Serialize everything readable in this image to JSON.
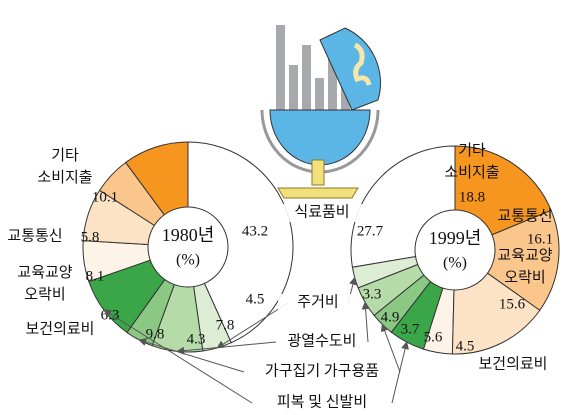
{
  "chart_data": [
    {
      "type": "pie",
      "title": "1980년",
      "unit_label": "(%)",
      "direction": "clockwise",
      "categories": [
        "식료품비",
        "주거비",
        "광열수도비",
        "가구집기 가구용품",
        "피복 및 신발비",
        "보건의료비",
        "교육교양\n오락비",
        "교통통신",
        "기타\n소비지출"
      ],
      "values": [
        43.2,
        4.5,
        7.8,
        4.3,
        9.8,
        6.3,
        8.1,
        5.8,
        10.1
      ],
      "colors": [
        "#ffffff",
        "#dcedd3",
        "#b5dba8",
        "#8ac884",
        "#3aa648",
        "#fef3e7",
        "#fde3c6",
        "#fbc68c",
        "#f7961f"
      ]
    },
    {
      "type": "pie",
      "title": "1999년",
      "unit_label": "(%)",
      "direction": "counterclockwise",
      "categories": [
        "식료품비",
        "주거비",
        "광열수도비",
        "가구집기 가구용품",
        "피복 및 신발비",
        "보건의료비",
        "교육교양\n오락비",
        "교통통신",
        "기타\n소비지출"
      ],
      "values": [
        27.7,
        3.3,
        4.9,
        3.7,
        5.6,
        4.5,
        15.6,
        16.1,
        18.8
      ],
      "colors": [
        "#ffffff",
        "#dcedd3",
        "#b5dba8",
        "#8ac884",
        "#3aa648",
        "#fef3e7",
        "#fde3c6",
        "#fbc68c",
        "#f7961f"
      ]
    }
  ]
}
